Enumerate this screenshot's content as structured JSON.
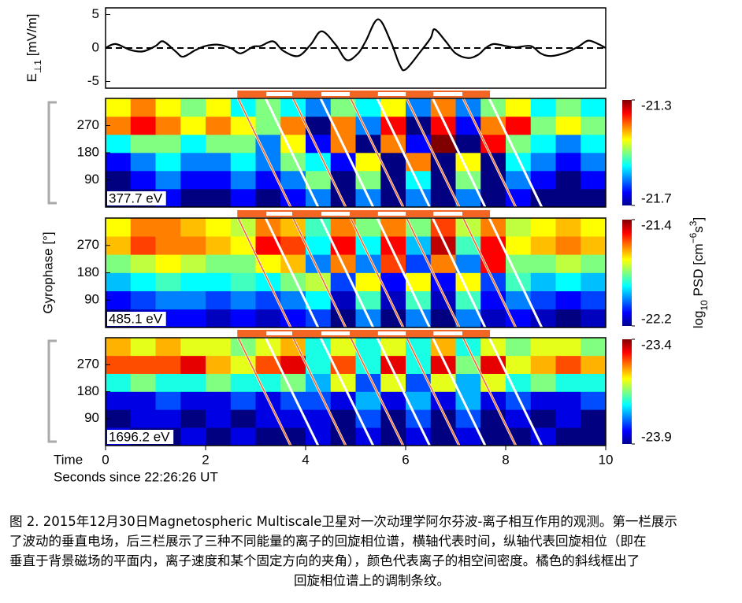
{
  "chart_data": [
    {
      "type": "line",
      "ylabel": [
        {
          "text": "E"
        },
        {
          "text": "⊥1",
          "sub": true
        },
        {
          "text": " [mV/m]"
        }
      ],
      "xlim": [
        0,
        10
      ],
      "ylim": [
        -6,
        6
      ],
      "yticks": [
        -5,
        0,
        5
      ],
      "zero_line": true,
      "x": [
        0,
        0.2,
        0.5,
        0.75,
        1.0,
        1.15,
        1.4,
        1.55,
        1.8,
        2.0,
        2.25,
        2.5,
        2.7,
        2.95,
        3.1,
        3.35,
        3.55,
        3.85,
        4.1,
        4.32,
        4.6,
        4.82,
        5.05,
        5.2,
        5.45,
        5.7,
        5.88,
        6.0,
        6.3,
        6.5,
        6.58,
        6.8,
        7.0,
        7.25,
        7.45,
        7.6,
        7.76,
        8.0,
        8.2,
        8.5,
        8.7,
        8.9,
        9.2,
        9.45,
        9.65,
        9.85,
        10
      ],
      "series": [
        {
          "color": "#000000",
          "values": [
            0,
            0.6,
            -0.3,
            -0.5,
            0.3,
            1.0,
            -0.5,
            -1.3,
            -0.3,
            0.3,
            0.5,
            0.0,
            -0.8,
            0.2,
            0.3,
            1.0,
            -0.4,
            -1.2,
            0.5,
            2.5,
            0.5,
            -1.8,
            -0.8,
            1.0,
            4.3,
            1.0,
            -2.5,
            -3.2,
            -0.5,
            1.5,
            2.8,
            1.0,
            -0.8,
            -1.5,
            -1.0,
            0.0,
            0.6,
            0.3,
            0.1,
            0.3,
            -0.8,
            -1.2,
            -0.7,
            0.2,
            1.1,
            0.6,
            0
          ]
        }
      ]
    },
    {
      "type": "heatmap",
      "label": "377.7 eV",
      "xlim": [
        0,
        10
      ],
      "ylim": [
        0,
        360
      ],
      "yticks": [
        90,
        180,
        270
      ],
      "xbins": [
        0,
        0.5,
        1,
        1.5,
        2,
        2.5,
        3,
        3.5,
        4,
        4.5,
        5,
        5.5,
        6,
        6.5,
        7,
        7.5,
        8,
        8.5,
        9,
        9.5,
        10
      ],
      "ybins": [
        0,
        60,
        120,
        180,
        240,
        300,
        360
      ],
      "z": [
        [
          -21.7,
          -21.7,
          -21.65,
          -21.7,
          -21.7,
          -21.65,
          -21.7,
          -21.65,
          -21.6,
          -21.7,
          -21.6,
          -21.7,
          -21.6,
          -21.7,
          -21.6,
          -21.7,
          -21.65,
          -21.7,
          -21.7,
          -21.7
        ],
        [
          -21.7,
          -21.65,
          -21.6,
          -21.65,
          -21.65,
          -21.6,
          -21.65,
          -21.6,
          -21.5,
          -21.7,
          -21.5,
          -21.7,
          -21.55,
          -21.7,
          -21.5,
          -21.7,
          -21.6,
          -21.65,
          -21.7,
          -21.65
        ],
        [
          -21.65,
          -21.6,
          -21.55,
          -21.6,
          -21.6,
          -21.55,
          -21.6,
          -21.5,
          -21.55,
          -21.65,
          -21.45,
          -21.7,
          -21.4,
          -21.7,
          -21.45,
          -21.7,
          -21.55,
          -21.6,
          -21.65,
          -21.6
        ],
        [
          -21.55,
          -21.5,
          -21.5,
          -21.55,
          -21.5,
          -21.5,
          -21.6,
          -21.45,
          -21.65,
          -21.4,
          -21.7,
          -21.4,
          -21.65,
          -21.3,
          -21.7,
          -21.35,
          -21.5,
          -21.55,
          -21.6,
          -21.55
        ],
        [
          -21.4,
          -21.35,
          -21.4,
          -21.45,
          -21.4,
          -21.45,
          -21.5,
          -21.4,
          -21.7,
          -21.4,
          -21.6,
          -21.35,
          -21.7,
          -21.35,
          -21.65,
          -21.4,
          -21.35,
          -21.5,
          -21.45,
          -21.5
        ],
        [
          -21.45,
          -21.4,
          -21.45,
          -21.5,
          -21.45,
          -21.55,
          -21.5,
          -21.55,
          -21.6,
          -21.5,
          -21.55,
          -21.45,
          -21.6,
          -21.4,
          -21.6,
          -21.5,
          -21.45,
          -21.55,
          -21.5,
          -21.55
        ]
      ],
      "clim": [
        -21.7,
        -21.3
      ],
      "cticks": [
        -21.3,
        -21.7
      ],
      "stripe_edges": [
        2.65,
        3.2,
        3.75,
        4.3,
        4.9,
        5.43,
        6.02,
        6.54,
        7.15,
        7.67
      ],
      "stripe_drift": 1.05
    },
    {
      "type": "heatmap",
      "label": "485.1 eV",
      "xlim": [
        0,
        10
      ],
      "ylim": [
        0,
        360
      ],
      "yticks": [
        90,
        180,
        270
      ],
      "ylabel": "Gyrophase [°]",
      "colorbar_label": [
        {
          "text": "log"
        },
        {
          "text": "10",
          "sub": true
        },
        {
          "text": " PSD [cm"
        },
        {
          "text": "−6",
          "sup": true
        },
        {
          "text": "s"
        },
        {
          "text": "3",
          "sup": true
        },
        {
          "text": "]"
        }
      ],
      "xbins": [
        0,
        0.5,
        1,
        1.5,
        2,
        2.5,
        3,
        3.5,
        4,
        4.5,
        5,
        5.5,
        6,
        6.5,
        7,
        7.5,
        8,
        8.5,
        9,
        9.5,
        10
      ],
      "ybins": [
        0,
        60,
        120,
        180,
        240,
        300,
        360
      ],
      "z": [
        [
          -22.2,
          -22.15,
          -22.1,
          -22.1,
          -22.15,
          -22.1,
          -22.15,
          -22.1,
          -22.05,
          -22.2,
          -22.0,
          -22.2,
          -22.0,
          -22.2,
          -22.0,
          -22.15,
          -22.1,
          -22.15,
          -22.2,
          -22.15
        ],
        [
          -22.1,
          -22.05,
          -22.0,
          -22.0,
          -22.05,
          -22.0,
          -22.05,
          -22.0,
          -21.9,
          -22.15,
          -21.85,
          -22.15,
          -21.85,
          -22.15,
          -21.85,
          -22.1,
          -22.0,
          -22.05,
          -22.1,
          -22.05
        ],
        [
          -21.95,
          -21.9,
          -21.85,
          -21.9,
          -21.9,
          -21.85,
          -21.9,
          -21.8,
          -21.75,
          -22.05,
          -21.7,
          -22.1,
          -21.7,
          -22.1,
          -21.7,
          -22.05,
          -21.85,
          -21.95,
          -21.9,
          -21.95
        ],
        [
          -21.8,
          -21.75,
          -21.7,
          -21.75,
          -21.8,
          -21.8,
          -21.7,
          -21.65,
          -22.0,
          -21.6,
          -22.0,
          -21.55,
          -22.05,
          -21.6,
          -22.0,
          -21.5,
          -21.8,
          -21.8,
          -21.75,
          -21.8
        ],
        [
          -21.65,
          -21.55,
          -21.6,
          -21.6,
          -21.65,
          -21.7,
          -21.5,
          -21.55,
          -21.9,
          -21.5,
          -21.9,
          -21.5,
          -21.95,
          -21.45,
          -21.85,
          -21.5,
          -21.7,
          -21.65,
          -21.6,
          -21.65
        ],
        [
          -21.7,
          -21.6,
          -21.6,
          -21.65,
          -21.7,
          -21.75,
          -21.6,
          -21.65,
          -21.85,
          -21.6,
          -21.8,
          -21.6,
          -21.8,
          -21.55,
          -21.75,
          -21.6,
          -21.75,
          -21.7,
          -21.65,
          -21.7
        ]
      ],
      "clim": [
        -22.2,
        -21.4
      ],
      "cticks": [
        -21.4,
        -22.2
      ],
      "stripe_edges": [
        2.65,
        3.2,
        3.75,
        4.3,
        4.9,
        5.43,
        6.02,
        6.54,
        7.15,
        7.67
      ],
      "stripe_drift": 1.05
    },
    {
      "type": "heatmap",
      "label": "1696.2 eV",
      "xlim": [
        0,
        10
      ],
      "ylim": [
        0,
        360
      ],
      "yticks": [
        90,
        180,
        270
      ],
      "xticks": [
        0,
        2,
        4,
        6,
        8,
        10
      ],
      "xaxis_name": "Time",
      "xlabel": "Seconds since 22:26:26 UT",
      "xbins": [
        0,
        0.5,
        1,
        1.5,
        2,
        2.5,
        3,
        3.5,
        4,
        4.5,
        5,
        5.5,
        6,
        6.5,
        7,
        7.5,
        8,
        8.5,
        9,
        9.5,
        10
      ],
      "ybins": [
        0,
        60,
        120,
        180,
        240,
        300,
        360
      ],
      "z": [
        [
          -23.85,
          -23.9,
          -23.9,
          -23.85,
          -23.9,
          -23.85,
          -23.9,
          -23.9,
          -23.85,
          -23.9,
          -23.85,
          -23.9,
          -23.85,
          -23.9,
          -23.85,
          -23.9,
          -23.9,
          -23.85,
          -23.9,
          -23.9
        ],
        [
          -23.9,
          -23.85,
          -23.85,
          -23.9,
          -23.85,
          -23.9,
          -23.85,
          -23.85,
          -23.85,
          -23.9,
          -23.8,
          -23.9,
          -23.8,
          -23.9,
          -23.8,
          -23.9,
          -23.85,
          -23.9,
          -23.85,
          -23.9
        ],
        [
          -23.85,
          -23.85,
          -23.8,
          -23.85,
          -23.85,
          -23.8,
          -23.85,
          -23.8,
          -23.8,
          -23.85,
          -23.75,
          -23.85,
          -23.75,
          -23.85,
          -23.75,
          -23.85,
          -23.8,
          -23.85,
          -23.85,
          -23.8
        ],
        [
          -23.7,
          -23.65,
          -23.7,
          -23.7,
          -23.65,
          -23.7,
          -23.7,
          -23.65,
          -23.75,
          -23.6,
          -23.8,
          -23.6,
          -23.8,
          -23.6,
          -23.75,
          -23.6,
          -23.7,
          -23.65,
          -23.7,
          -23.7
        ],
        [
          -23.5,
          -23.5,
          -23.5,
          -23.45,
          -23.55,
          -23.6,
          -23.5,
          -23.45,
          -23.7,
          -23.5,
          -23.7,
          -23.45,
          -23.7,
          -23.45,
          -23.65,
          -23.45,
          -23.6,
          -23.55,
          -23.5,
          -23.55
        ],
        [
          -23.55,
          -23.6,
          -23.55,
          -23.6,
          -23.6,
          -23.65,
          -23.6,
          -23.55,
          -23.7,
          -23.6,
          -23.7,
          -23.6,
          -23.7,
          -23.55,
          -23.7,
          -23.6,
          -23.65,
          -23.6,
          -23.6,
          -23.65
        ]
      ],
      "clim": [
        -23.9,
        -23.4
      ],
      "cticks": [
        -23.4,
        -23.9
      ],
      "stripe_edges": [
        2.65,
        3.2,
        3.75,
        4.3,
        4.9,
        5.43,
        6.02,
        6.54,
        7.15,
        7.67
      ],
      "stripe_drift": 1.05
    }
  ],
  "caption": [
    "图 2.  2015年12月30日Magnetospheric Multiscale卫星对一次动理学阿尔芬波-离子相互作用的观测。第一栏展示",
    "了波动的垂直电场，后三栏展示了三种不同能量的离子的回旋相位谱，横轴代表时间，纵轴代表回旋相位（即在",
    "垂直于背景磁场的平面内，离子速度和某个固定方向的夹角），颜色代表离子的相空间密度。橘色的斜线框出了",
    "回旋相位谱上的调制条纹。"
  ]
}
